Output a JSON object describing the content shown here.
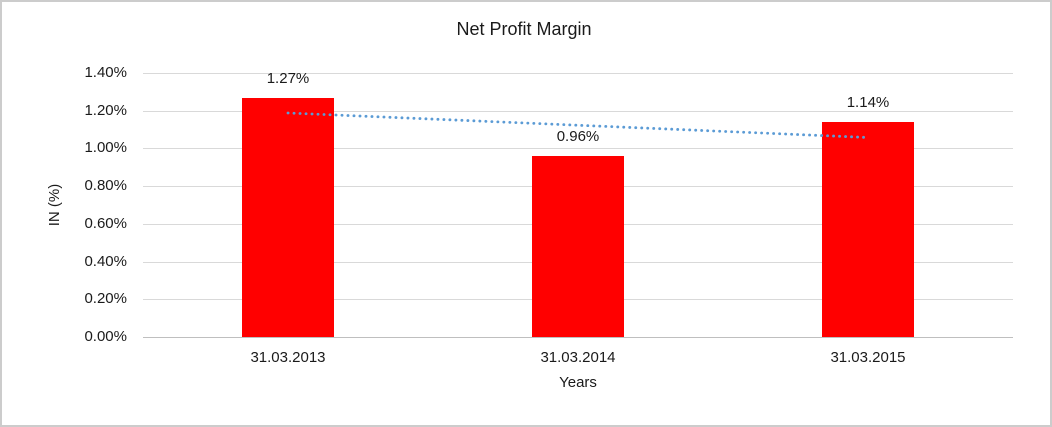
{
  "chart": {
    "frame_border_color": "#cccccc",
    "background_color": "#ffffff"
  },
  "chart_data": {
    "type": "bar",
    "title": "Net Profit Margin",
    "xlabel": "Years",
    "ylabel": "IN (%)",
    "categories": [
      "31.03.2013",
      "31.03.2014",
      "31.03.2015"
    ],
    "values": [
      1.27,
      0.96,
      1.14
    ],
    "data_labels": [
      "1.27%",
      "0.96%",
      "1.14%"
    ],
    "unit": "%",
    "ylim": [
      0,
      1.4
    ],
    "yticks": [
      {
        "value": 0.0,
        "label": "0.00%"
      },
      {
        "value": 0.2,
        "label": "0.20%"
      },
      {
        "value": 0.4,
        "label": "0.40%"
      },
      {
        "value": 0.6,
        "label": "0.60%"
      },
      {
        "value": 0.8,
        "label": "0.80%"
      },
      {
        "value": 1.0,
        "label": "1.00%"
      },
      {
        "value": 1.2,
        "label": "1.20%"
      },
      {
        "value": 1.4,
        "label": "1.40%"
      }
    ],
    "grid": true,
    "grid_color": "#d9d9d9",
    "legend": "none",
    "bar_color": "#ff0000",
    "text_color": "#1a1a1a",
    "trendline": {
      "type": "linear",
      "style": "dotted",
      "color": "#5b9bd5",
      "start_value": 1.188,
      "end_value": 1.058
    }
  }
}
